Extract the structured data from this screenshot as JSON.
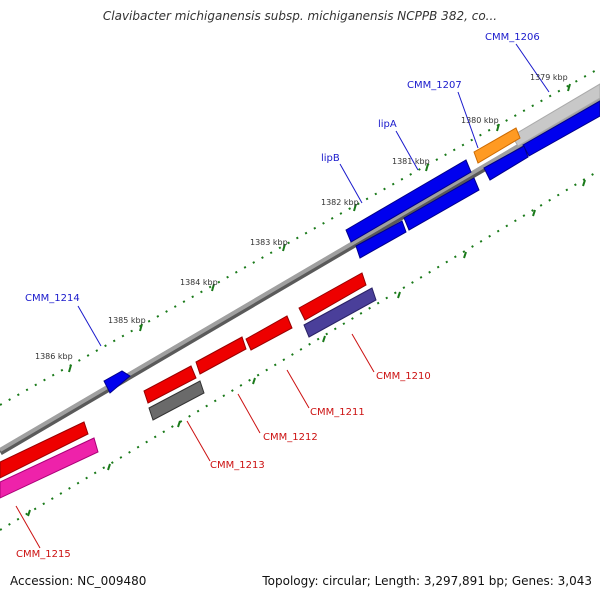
{
  "title": "Clavibacter michiganensis subsp. michiganensis NCPPB 382, co...",
  "footer": {
    "accession": "Accession: NC_009480",
    "summary": "Topology: circular; Length: 3,297,891 bp; Genes: 3,043"
  },
  "colors": {
    "forward_label": "#1a1acc",
    "reverse_label": "#cc1111",
    "tick": "#1a7a1a",
    "backbone": "#808080"
  },
  "kbp_ticks": [
    "1379 kbp",
    "1380 kbp",
    "1381 kbp",
    "1382 kbp",
    "1383 kbp",
    "1384 kbp",
    "1385 kbp",
    "1386 kbp"
  ],
  "genes": [
    {
      "label": "CMM_1206",
      "strand": "forward"
    },
    {
      "label": "CMM_1207",
      "strand": "forward"
    },
    {
      "label": "lipA",
      "strand": "forward"
    },
    {
      "label": "lipB",
      "strand": "forward"
    },
    {
      "label": "CMM_1214",
      "strand": "forward"
    },
    {
      "label": "CMM_1210",
      "strand": "reverse"
    },
    {
      "label": "CMM_1211",
      "strand": "reverse"
    },
    {
      "label": "CMM_1212",
      "strand": "reverse"
    },
    {
      "label": "CMM_1213",
      "strand": "reverse"
    },
    {
      "label": "CMM_1215",
      "strand": "reverse"
    }
  ]
}
